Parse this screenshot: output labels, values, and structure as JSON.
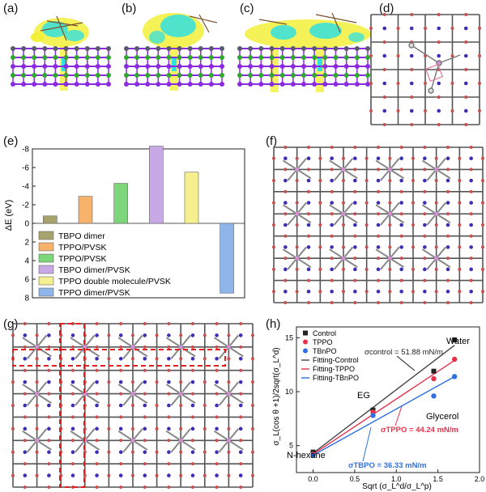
{
  "figure": {
    "panel_labels": [
      "(a)",
      "(b)",
      "(c)",
      "(d)",
      "(e)",
      "(f)",
      "(g)",
      "(h)"
    ]
  },
  "colors": {
    "iodine": "#8a2be2",
    "lead": "#5a5a6e",
    "cation": "#2ea82e",
    "charge_yellow": "#f2f03a",
    "charge_cyan": "#33e0df",
    "lattice_red": "#c85050",
    "lattice_grey": "#555555",
    "lattice_blue": "#3b2fb5",
    "dashed_red": "#e02020"
  },
  "chart_data": [
    {
      "id": "e",
      "type": "bar",
      "ylabel": "ΔE (eV)",
      "ylim": [
        8,
        -8
      ],
      "yticks": [
        8,
        6,
        4,
        2,
        0,
        -2,
        -4,
        -6,
        -8
      ],
      "ytick_labels": [
        "8",
        "6",
        "4",
        "2",
        "0",
        "-2",
        "-4",
        "-6",
        "-8"
      ],
      "categories": [
        "TBPO dimer",
        "TPPO/PVSK",
        "TPPO/PVSK",
        "TBPO dimer/PVSK",
        "TPPO double molecule/PVSK",
        "TPPO dimer/PVSK"
      ],
      "values": [
        -0.8,
        -2.9,
        -4.3,
        -8.3,
        -5.5,
        7.5
      ],
      "colors": [
        "#a8a36c",
        "#f7b26b",
        "#7ed67a",
        "#c9a8e6",
        "#f5ef8f",
        "#8fb6ea"
      ],
      "legend": "bottom-left"
    },
    {
      "id": "h",
      "type": "scatter",
      "xlabel": "Sqrt (σ_L^d/σ_L^p)",
      "ylabel": "σ_L(cos θ +1)/2sqrt(σ_L^d)",
      "xlim": [
        -0.2,
        2.0
      ],
      "ylim": [
        2.5,
        16
      ],
      "xticks": [
        0.0,
        0.5,
        1.0,
        1.5,
        2.0
      ],
      "xtick_labels": [
        "0.0",
        "0.5",
        "1.0",
        "1.5",
        "2.0"
      ],
      "yticks": [
        5,
        10,
        15
      ],
      "ytick_labels": [
        "5",
        "10",
        "15"
      ],
      "series": [
        {
          "name": "Control",
          "marker": "square",
          "color": "#222222",
          "points": [
            [
              0.0,
              4.4
            ],
            [
              0.72,
              8.3
            ],
            [
              1.45,
              11.9
            ],
            [
              1.7,
              14.8
            ]
          ]
        },
        {
          "name": "TPPO",
          "marker": "circle",
          "color": "#e8324b",
          "points": [
            [
              0.0,
              4.2
            ],
            [
              0.72,
              8.1
            ],
            [
              1.45,
              11.2
            ],
            [
              1.7,
              13.0
            ]
          ]
        },
        {
          "name": "TBnPO",
          "marker": "circle",
          "color": "#2f6fe0",
          "points": [
            [
              0.0,
              4.1
            ],
            [
              0.72,
              7.8
            ],
            [
              1.45,
              9.6
            ],
            [
              1.7,
              11.4
            ]
          ]
        }
      ],
      "fits": [
        {
          "name": "Fitting-Control",
          "color": "#444444",
          "start": [
            0.0,
            4.3
          ],
          "end": [
            1.7,
            14.3
          ]
        },
        {
          "name": "Fitting-TPPO",
          "color": "#e8324b",
          "start": [
            0.0,
            4.2
          ],
          "end": [
            1.7,
            12.9
          ]
        },
        {
          "name": "Fitting-TBnPO",
          "color": "#2f6fe0",
          "start": [
            0.0,
            4.1
          ],
          "end": [
            1.7,
            11.4
          ]
        }
      ],
      "annotations": {
        "water": "Water",
        "eg": "EG",
        "glycerol": "Glycerol",
        "nhexane": "N-hexane",
        "sigma_control": "σcontrol = 51.88 mN/m",
        "sigma_tppo": "σTPPO = 44.24 mN/m",
        "sigma_tbpo": "σTBPO = 36.33 mN/m"
      },
      "legend": "top-left"
    }
  ]
}
